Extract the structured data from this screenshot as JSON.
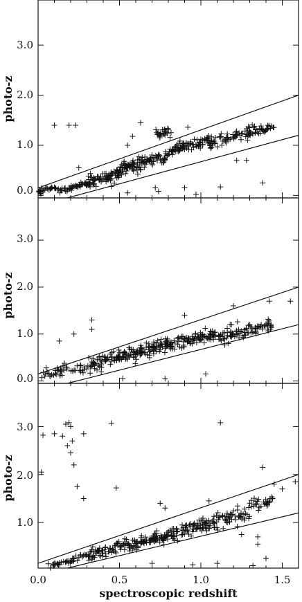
{
  "chart_data": {
    "type": "scatter",
    "xlabel": "spectroscopic redshift",
    "xlim": [
      0.0,
      1.6
    ],
    "x_ticks": [
      "0.0",
      "0.5",
      "1.0",
      "1.5"
    ],
    "panels": [
      {
        "ylabel": "photo-z",
        "ylim": [
          -0.05,
          3.9
        ],
        "y_ticks": [
          "0.0",
          "1.0",
          "2.0",
          "3.0"
        ],
        "boundary_lines": [
          {
            "x": [
              0.0,
              1.6
            ],
            "y": [
              0.15,
              2.0
            ]
          },
          {
            "x": [
              0.18,
              1.6
            ],
            "y": [
              -0.05,
              1.2
            ]
          }
        ],
        "clusters": [
          {
            "x_range": [
              0.0,
              0.12
            ],
            "y_center": 0.13,
            "spread": 0.04,
            "count": 25
          },
          {
            "x_range": [
              0.12,
              0.3
            ],
            "y_center": 0.16,
            "spread": 0.05,
            "count": 45
          },
          {
            "x_range": [
              0.3,
              0.5
            ],
            "y_center": 0.35,
            "spread": 0.08,
            "count": 80
          },
          {
            "x_range": [
              0.5,
              0.78
            ],
            "y_center": 0.65,
            "spread": 0.1,
            "count": 110
          },
          {
            "x_range": [
              0.78,
              1.05
            ],
            "y_center": 0.98,
            "spread": 0.08,
            "count": 90
          },
          {
            "x_range": [
              0.72,
              0.82
            ],
            "y_center": 1.25,
            "spread": 0.08,
            "count": 25
          },
          {
            "x_range": [
              1.05,
              1.45
            ],
            "y_center": 1.22,
            "spread": 0.09,
            "count": 100
          }
        ],
        "outliers": [
          {
            "x": 0.1,
            "y": 1.4
          },
          {
            "x": 0.19,
            "y": 1.4
          },
          {
            "x": 0.23,
            "y": 1.4
          },
          {
            "x": 0.63,
            "y": 1.45
          },
          {
            "x": 0.58,
            "y": 1.18
          },
          {
            "x": 0.25,
            "y": 0.55
          },
          {
            "x": 0.45,
            "y": 0.18
          },
          {
            "x": 0.55,
            "y": 0.05
          },
          {
            "x": 0.74,
            "y": 0.08
          },
          {
            "x": 0.9,
            "y": 0.15
          },
          {
            "x": 0.97,
            "y": 0.02
          },
          {
            "x": 1.12,
            "y": 0.17
          },
          {
            "x": 1.38,
            "y": 0.25
          },
          {
            "x": 0.92,
            "y": 1.36
          },
          {
            "x": 1.22,
            "y": 0.7
          },
          {
            "x": 1.28,
            "y": 0.7
          },
          {
            "x": 0.55,
            "y": 1.0
          },
          {
            "x": 0.72,
            "y": 0.15
          }
        ]
      },
      {
        "ylabel": "photo-z",
        "ylim": [
          -0.05,
          3.9
        ],
        "y_ticks": [
          "0.0",
          "1.0",
          "2.0",
          "3.0"
        ],
        "boundary_lines": [
          {
            "x": [
              0.0,
              1.6
            ],
            "y": [
              0.15,
              2.0
            ]
          },
          {
            "x": [
              0.18,
              1.6
            ],
            "y": [
              -0.05,
              1.2
            ]
          }
        ],
        "clusters": [
          {
            "x_range": [
              0.02,
              0.25
            ],
            "y_center": 0.2,
            "spread": 0.1,
            "count": 35
          },
          {
            "x_range": [
              0.25,
              0.5
            ],
            "y_center": 0.4,
            "spread": 0.12,
            "count": 70
          },
          {
            "x_range": [
              0.5,
              0.8
            ],
            "y_center": 0.65,
            "spread": 0.14,
            "count": 110
          },
          {
            "x_range": [
              0.8,
              1.1
            ],
            "y_center": 0.88,
            "spread": 0.13,
            "count": 90
          },
          {
            "x_range": [
              1.1,
              1.45
            ],
            "y_center": 1.08,
            "spread": 0.14,
            "count": 90
          }
        ],
        "outliers": [
          {
            "x": 0.13,
            "y": 0.85
          },
          {
            "x": 0.22,
            "y": 1.0
          },
          {
            "x": 0.33,
            "y": 1.1
          },
          {
            "x": 0.33,
            "y": 1.3
          },
          {
            "x": 0.52,
            "y": 0.05
          },
          {
            "x": 0.78,
            "y": 0.05
          },
          {
            "x": 1.03,
            "y": 0.15
          },
          {
            "x": 1.2,
            "y": 1.6
          },
          {
            "x": 1.42,
            "y": 1.7
          },
          {
            "x": 1.55,
            "y": 1.7
          },
          {
            "x": 0.9,
            "y": 1.4
          },
          {
            "x": 0.05,
            "y": 0.28
          }
        ]
      },
      {
        "ylabel": "photo-z",
        "ylim": [
          0.05,
          3.9
        ],
        "y_ticks": [
          "1.0",
          "2.0",
          "3.0"
        ],
        "boundary_lines": [
          {
            "x": [
              0.0,
              1.6
            ],
            "y": [
              0.15,
              2.0
            ]
          },
          {
            "x": [
              0.18,
              1.6
            ],
            "y": [
              0.05,
              1.2
            ]
          }
        ],
        "clusters": [
          {
            "x_range": [
              0.05,
              0.3
            ],
            "y_center": 0.2,
            "spread": 0.06,
            "count": 40
          },
          {
            "x_range": [
              0.3,
              0.55
            ],
            "y_center": 0.43,
            "spread": 0.1,
            "count": 70
          },
          {
            "x_range": [
              0.55,
              0.8
            ],
            "y_center": 0.62,
            "spread": 0.1,
            "count": 90
          },
          {
            "x_range": [
              0.8,
              1.05
            ],
            "y_center": 0.86,
            "spread": 0.12,
            "count": 80
          },
          {
            "x_range": [
              1.05,
              1.3
            ],
            "y_center": 1.1,
            "spread": 0.14,
            "count": 60
          },
          {
            "x_range": [
              1.3,
              1.45
            ],
            "y_center": 1.4,
            "spread": 0.14,
            "count": 30
          }
        ],
        "outliers": [
          {
            "x": 0.03,
            "y": 2.82
          },
          {
            "x": 0.1,
            "y": 2.85
          },
          {
            "x": 0.15,
            "y": 2.8
          },
          {
            "x": 0.17,
            "y": 3.05
          },
          {
            "x": 0.19,
            "y": 3.08
          },
          {
            "x": 0.2,
            "y": 3.0
          },
          {
            "x": 0.21,
            "y": 2.7
          },
          {
            "x": 0.18,
            "y": 2.6
          },
          {
            "x": 0.2,
            "y": 2.45
          },
          {
            "x": 0.22,
            "y": 2.2
          },
          {
            "x": 0.24,
            "y": 1.75
          },
          {
            "x": 0.28,
            "y": 1.5
          },
          {
            "x": 0.28,
            "y": 2.85
          },
          {
            "x": 0.45,
            "y": 3.07
          },
          {
            "x": 0.02,
            "y": 2.05
          },
          {
            "x": 0.48,
            "y": 1.72
          },
          {
            "x": 1.12,
            "y": 3.08
          },
          {
            "x": 1.38,
            "y": 2.15
          },
          {
            "x": 1.45,
            "y": 1.8
          },
          {
            "x": 1.5,
            "y": 1.7
          },
          {
            "x": 1.58,
            "y": 1.85
          },
          {
            "x": 0.75,
            "y": 1.4
          },
          {
            "x": 0.78,
            "y": 1.3
          },
          {
            "x": 1.1,
            "y": 0.15
          },
          {
            "x": 1.32,
            "y": 0.1
          },
          {
            "x": 1.35,
            "y": 0.55
          },
          {
            "x": 1.4,
            "y": 0.25
          },
          {
            "x": 1.25,
            "y": 0.75
          },
          {
            "x": 0.7,
            "y": 0.15
          },
          {
            "x": 0.95,
            "y": 0.12
          },
          {
            "x": 1.35,
            "y": 0.7
          },
          {
            "x": 1.05,
            "y": 1.45
          }
        ]
      }
    ]
  }
}
